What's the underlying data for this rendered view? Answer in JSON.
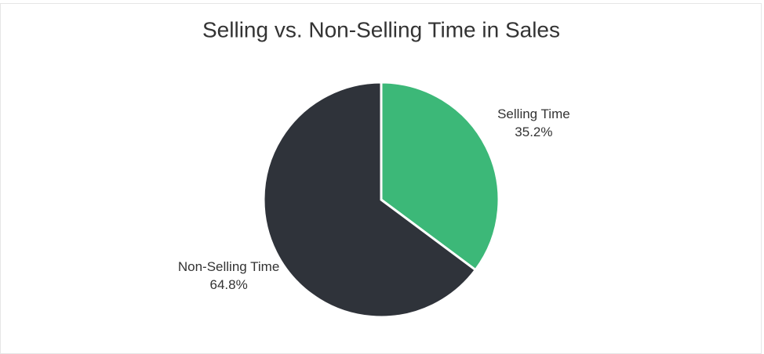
{
  "chart_data": {
    "type": "pie",
    "title": "Selling vs. Non-Selling Time in Sales",
    "categories": [
      "Selling Time",
      "Non-Selling Time"
    ],
    "values": [
      35.2,
      64.8
    ],
    "value_labels": [
      "35.2%",
      "64.8%"
    ],
    "colors": [
      "#3cb878",
      "#2f333a"
    ]
  }
}
